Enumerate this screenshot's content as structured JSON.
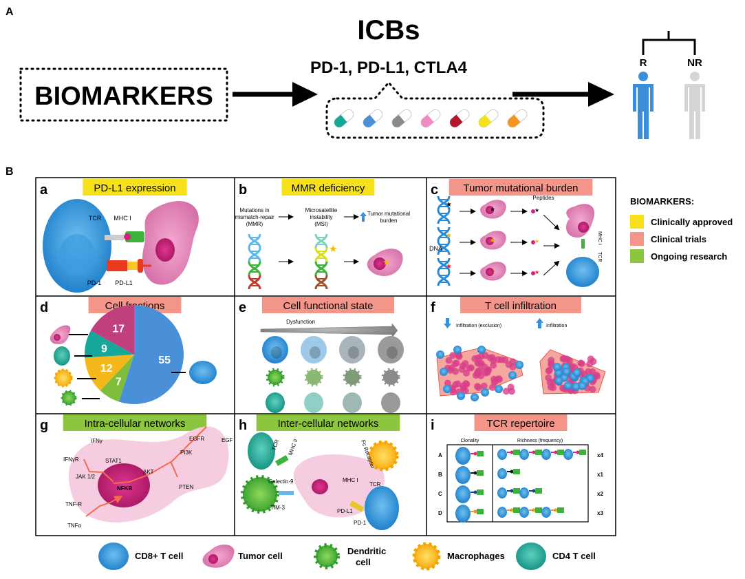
{
  "section_a": {
    "label": "A",
    "biomarkers": "BIOMARKERS",
    "title": "ICBs",
    "drugs": "PD-1, PD-L1, CTLA4",
    "responder": "R",
    "non_responder": "NR",
    "pill_colors": [
      "#17a69a",
      "#4a90d9",
      "#8a8a8a",
      "#ee8cc4",
      "#b3172a",
      "#f5e11b",
      "#f7941d"
    ]
  },
  "section_b": {
    "label": "B",
    "panels": {
      "a": {
        "letter": "a",
        "title": "PD-L1 expression",
        "tcr": "TCR",
        "mhc": "MHC I",
        "pd1": "PD-1",
        "pdl1": "PD-L1"
      },
      "b": {
        "letter": "b",
        "title": "MMR deficiency",
        "step1": [
          "Mutations in",
          "mismatch-repair",
          "(MMR)"
        ],
        "step2": [
          "Microsatellite",
          "instability",
          "(MSI)"
        ],
        "step3": [
          "Tumor mutational",
          "burden"
        ]
      },
      "c": {
        "letter": "c",
        "title": "Tumor mutational burden",
        "dna": "DNA",
        "peptides": "Peptides",
        "mhc": "MHC I",
        "tcr": "TCR"
      },
      "d": {
        "letter": "d",
        "title": "Cell fractions",
        "pie": [
          {
            "label": "55",
            "value": 55,
            "color": "#4a90d9"
          },
          {
            "label": "7",
            "value": 7,
            "color": "#7dbd3a"
          },
          {
            "label": "12",
            "value": 12,
            "color": "#f4b71c"
          },
          {
            "label": "9",
            "value": 9,
            "color": "#17a69a"
          },
          {
            "label": "17",
            "value": 17,
            "color": "#c0407f"
          }
        ]
      },
      "e": {
        "letter": "e",
        "title": "Cell functional state",
        "dysfunction": "Dysfunction"
      },
      "f": {
        "letter": "f",
        "title": "T cell infiltration",
        "left": "Infiltration (exclusion)",
        "right": "Infiltration"
      },
      "g": {
        "letter": "g",
        "title": "Intra-cellular networks",
        "nodes": {
          "ifng": "IFNγ",
          "ifngr": "IFNγR",
          "stat1": "STAT1",
          "jak": "JAK 1/2",
          "nfkb": "NFKB",
          "akt": "AKT",
          "pi3k": "PI3K",
          "egfr": "EGFR",
          "egf": "EGF",
          "pten": "PTEN",
          "tnfr": "TNF-R",
          "tnfa": "TNFα"
        }
      },
      "h": {
        "letter": "h",
        "title": "Inter-cellular networks",
        "labels": {
          "tcr1": "TCR",
          "mhc2": "MHC II",
          "fc": "Fc Receptor",
          "galectin": "Galectin-9",
          "tim3": "TIM-3",
          "mhc1": "MHC I",
          "tcr2": "TCR",
          "pdl1": "PD-L1",
          "pd1": "PD-1"
        }
      },
      "i": {
        "letter": "i",
        "title": "TCR repertoire",
        "clonality": "Clonality",
        "richness": "Richness (frequency)",
        "rows": [
          {
            "label": "A",
            "count": "x4",
            "n": 4,
            "color": "#e0218a"
          },
          {
            "label": "B",
            "count": "x1",
            "n": 1,
            "color": "#111111"
          },
          {
            "label": "C",
            "count": "x2",
            "n": 2,
            "color": "#1b3f8f"
          },
          {
            "label": "D",
            "count": "x3",
            "n": 3,
            "color": "#f7941d"
          }
        ]
      }
    },
    "legend": {
      "title": "BIOMARKERS:",
      "items": [
        {
          "label": "Clinically approved",
          "color": "#f7e11b"
        },
        {
          "label": "Clinical trials",
          "color": "#f4958a"
        },
        {
          "label": "Ongoing research",
          "color": "#8cc63f"
        }
      ]
    },
    "cell_legend": [
      "CD8+ T cell",
      "Tumor cell",
      "Dendritic",
      "cell",
      "Macrophages",
      "CD4 T cell"
    ]
  }
}
